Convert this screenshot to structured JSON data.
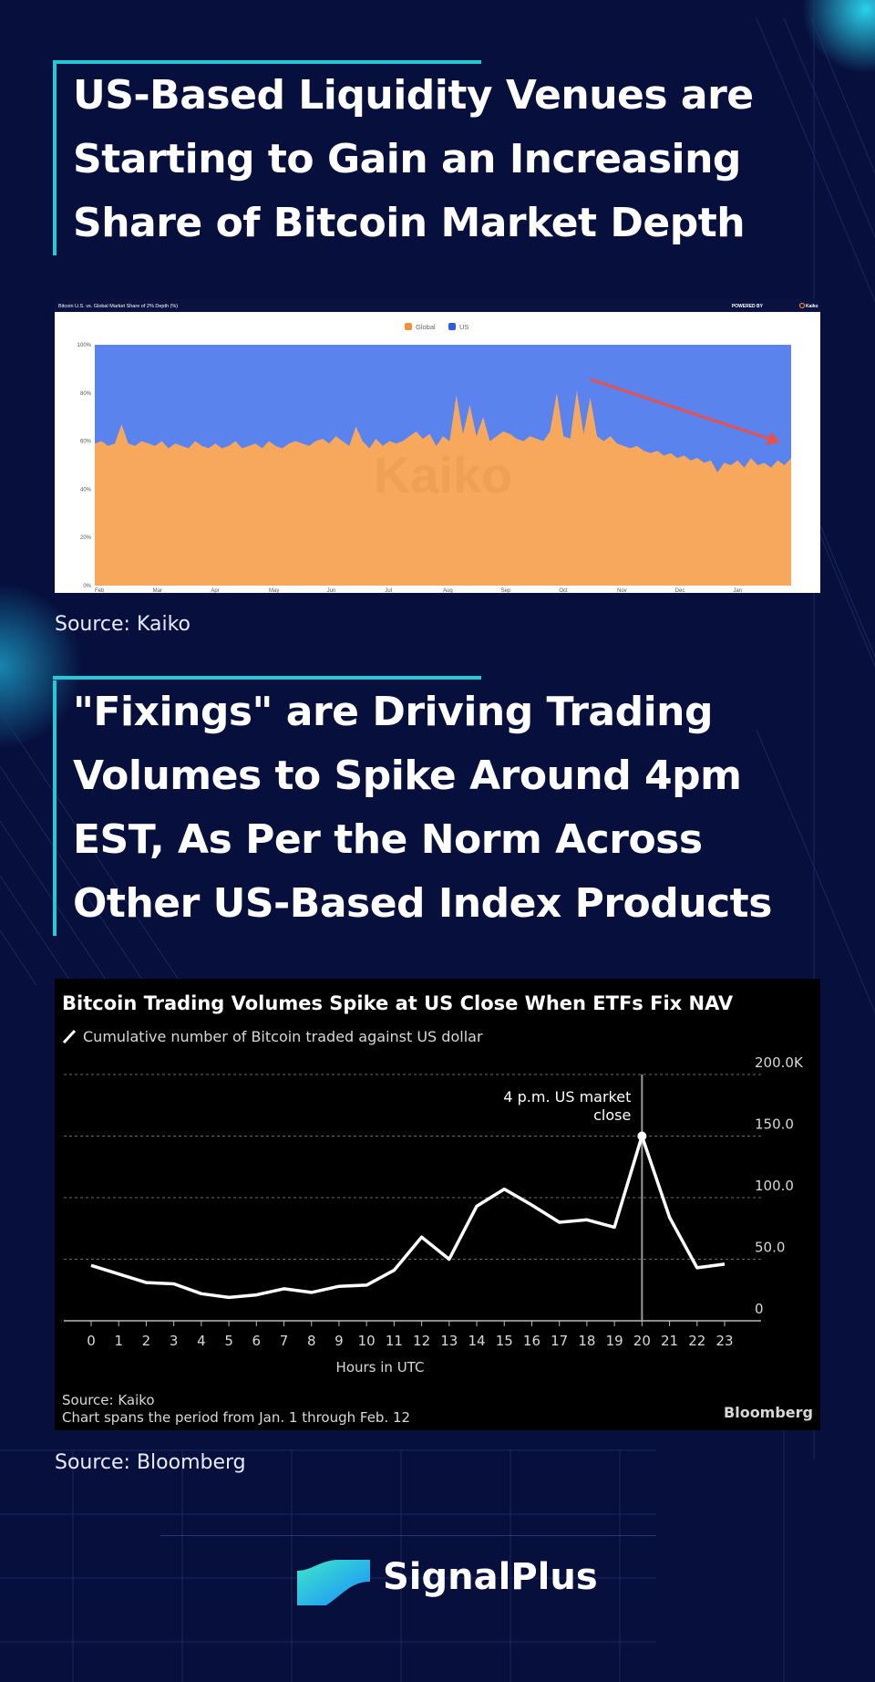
{
  "section1": {
    "title": "US-Based Liquidity Venues are Starting to Gain an Increasing Share of Bitcoin Market Depth",
    "source": "Source: Kaiko"
  },
  "section2": {
    "title": "\"Fixings\" are Driving Trading Volumes to Spike Around 4pm EST, As Per the Norm Across Other US-Based Index Products",
    "source": "Source: Bloomberg"
  },
  "brand": {
    "name": "SignalPlus"
  },
  "colors": {
    "background": "#07103d",
    "accent": "#24c9d6",
    "global": "#f7a85c",
    "us": "#5b83ee",
    "arrow": "#e8504a"
  },
  "chart_data": [
    {
      "type": "area",
      "title": "Bitcoin U.S. vs. Global Market Share of 2% Depth (%)",
      "powered_by": "POWERED BY",
      "brand": "Kaiko",
      "watermark": "Kaiko",
      "legend": [
        "Global",
        "US"
      ],
      "legend_position": "top-center",
      "ylim": [
        0,
        100
      ],
      "yticks": [
        "0%",
        "20%",
        "40%",
        "60%",
        "80%",
        "100%"
      ],
      "xticks": [
        "Feb",
        "Mar",
        "Apr",
        "May",
        "Jun",
        "Jul",
        "Aug",
        "Sep",
        "Oct",
        "Nov",
        "Dec",
        "Jan"
      ],
      "annotation": "downward arrow",
      "series": [
        {
          "name": "Global",
          "values": [
            59,
            60,
            58,
            59,
            67,
            59,
            58,
            60,
            59,
            58,
            60,
            57,
            59,
            58,
            57,
            60,
            58,
            57,
            59,
            57,
            58,
            60,
            57,
            58,
            59,
            57,
            60,
            58,
            57,
            59,
            60,
            59,
            58,
            60,
            61,
            59,
            62,
            60,
            58,
            66,
            60,
            57,
            61,
            58,
            60,
            59,
            60,
            62,
            64,
            61,
            63,
            58,
            62,
            60,
            79,
            63,
            75,
            62,
            70,
            60,
            62,
            64,
            63,
            61,
            60,
            62,
            61,
            60,
            64,
            80,
            62,
            61,
            81,
            63,
            78,
            62,
            60,
            62,
            59,
            58,
            57,
            58,
            56,
            55,
            56,
            54,
            55,
            53,
            54,
            52,
            53,
            51,
            52,
            47,
            51,
            50,
            52,
            49,
            53,
            50,
            51,
            49,
            52,
            50,
            53
          ]
        },
        {
          "name": "US",
          "values": [
            41,
            40,
            42,
            41,
            33,
            41,
            42,
            40,
            41,
            42,
            40,
            43,
            41,
            42,
            43,
            40,
            42,
            43,
            41,
            43,
            42,
            40,
            43,
            42,
            41,
            43,
            40,
            42,
            43,
            41,
            40,
            41,
            42,
            40,
            39,
            41,
            38,
            40,
            42,
            34,
            40,
            43,
            39,
            42,
            40,
            41,
            40,
            38,
            36,
            39,
            37,
            42,
            38,
            40,
            21,
            37,
            25,
            38,
            30,
            40,
            38,
            36,
            37,
            39,
            40,
            38,
            39,
            40,
            36,
            20,
            38,
            39,
            19,
            37,
            22,
            38,
            40,
            38,
            41,
            42,
            43,
            42,
            44,
            45,
            44,
            46,
            45,
            47,
            46,
            48,
            47,
            49,
            48,
            53,
            49,
            50,
            48,
            51,
            47,
            50,
            49,
            51,
            48,
            50,
            47
          ]
        }
      ]
    },
    {
      "type": "line",
      "title": "Bitcoin Trading Volumes Spike at US Close When ETFs Fix NAV",
      "subtitle": "Cumulative number of Bitcoin traded against US dollar",
      "xlabel": "Hours in UTC",
      "x": [
        0,
        1,
        2,
        3,
        4,
        5,
        6,
        7,
        8,
        9,
        10,
        11,
        12,
        13,
        14,
        15,
        16,
        17,
        18,
        19,
        20,
        21,
        22,
        23
      ],
      "values": [
        45,
        38,
        31,
        30,
        22,
        19,
        21,
        26,
        23,
        28,
        29,
        41,
        68,
        50,
        93,
        107,
        94,
        80,
        82,
        76,
        150,
        84,
        43,
        46
      ],
      "ylim": [
        0,
        200
      ],
      "yticks": [
        "0",
        "50.0",
        "100.0",
        "150.0",
        "200.0K"
      ],
      "annotation": {
        "text_lines": [
          "4 p.m. US market",
          "close"
        ],
        "x": 20
      },
      "source": "Source: Kaiko",
      "note": "Chart spans the period from Jan. 1 through Feb. 12",
      "credit": "Bloomberg"
    }
  ]
}
